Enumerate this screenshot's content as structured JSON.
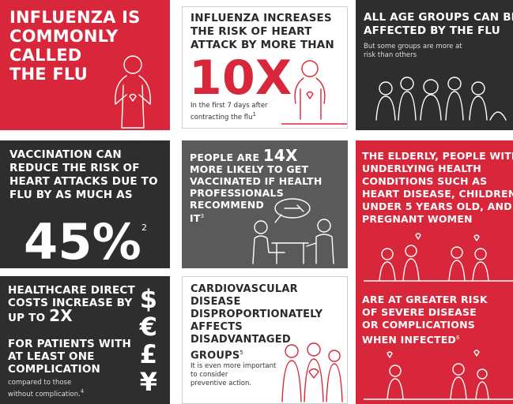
{
  "cards": [
    {
      "heading_lines": [
        "INFLUENZA IS",
        "COMMONLY",
        "CALLED",
        "THE FLU"
      ]
    },
    {
      "heading_lines": [
        "INFLUENZA INCREASES",
        "THE RISK OF HEART",
        "ATTACK BY MORE THAN"
      ],
      "big": "10X",
      "note_lines": [
        "In the first 7 days after",
        "contracting the flu"
      ],
      "footnote": "1"
    },
    {
      "heading_lines": [
        "ALL AGE GROUPS CAN BE",
        "AFFECTED BY THE FLU"
      ],
      "note_lines": [
        "But some groups are more at",
        "risk than others"
      ]
    },
    {
      "heading_lines": [
        "VACCINATION CAN",
        "REDUCE THE RISK OF",
        "HEART ATTACKS DUE TO",
        "FLU BY AS MUCH AS"
      ],
      "big": "45%",
      "footnote": "2"
    },
    {
      "lead": "PEOPLE ARE",
      "big": "14X",
      "heading_lines": [
        "MORE LIKELY TO GET",
        "VACCINATED IF HEALTH",
        "PROFESSIONALS",
        "RECOMMEND",
        "IT"
      ],
      "footnote": "3"
    },
    {
      "heading_lines": [
        "THE ELDERLY, PEOPLE WITH",
        "UNDERLYING HEALTH",
        "CONDITIONS SUCH AS",
        "HEART DISEASE, CHILDREN",
        "UNDER 5 YEARS OLD, AND",
        "PREGNANT WOMEN"
      ],
      "second_lines": [
        "ARE AT GREATER RISK",
        "OF SEVERE DISEASE",
        "OR COMPLICATIONS",
        "WHEN INFECTED"
      ],
      "footnote": "6"
    },
    {
      "heading_lines": [
        "HEALTHCARE DIRECT",
        "COSTS INCREASE BY"
      ],
      "lead": "UP TO",
      "big": "2X",
      "second_lines": [
        "FOR PATIENTS WITH",
        "AT LEAST ONE",
        "COMPLICATION"
      ],
      "note_lines": [
        "compared to those",
        "without complication."
      ],
      "footnote": "4",
      "currency_symbols": [
        "$",
        "€",
        "£",
        "¥"
      ]
    },
    {
      "heading_lines": [
        "CARDIOVASCULAR",
        "DISEASE",
        "DISPROPORTIONATELY",
        "AFFECTS",
        "DISADVANTAGED",
        "GROUPS"
      ],
      "footnote": "5",
      "note_lines": [
        "It is even more important",
        "to consider",
        "preventive action."
      ]
    }
  ]
}
